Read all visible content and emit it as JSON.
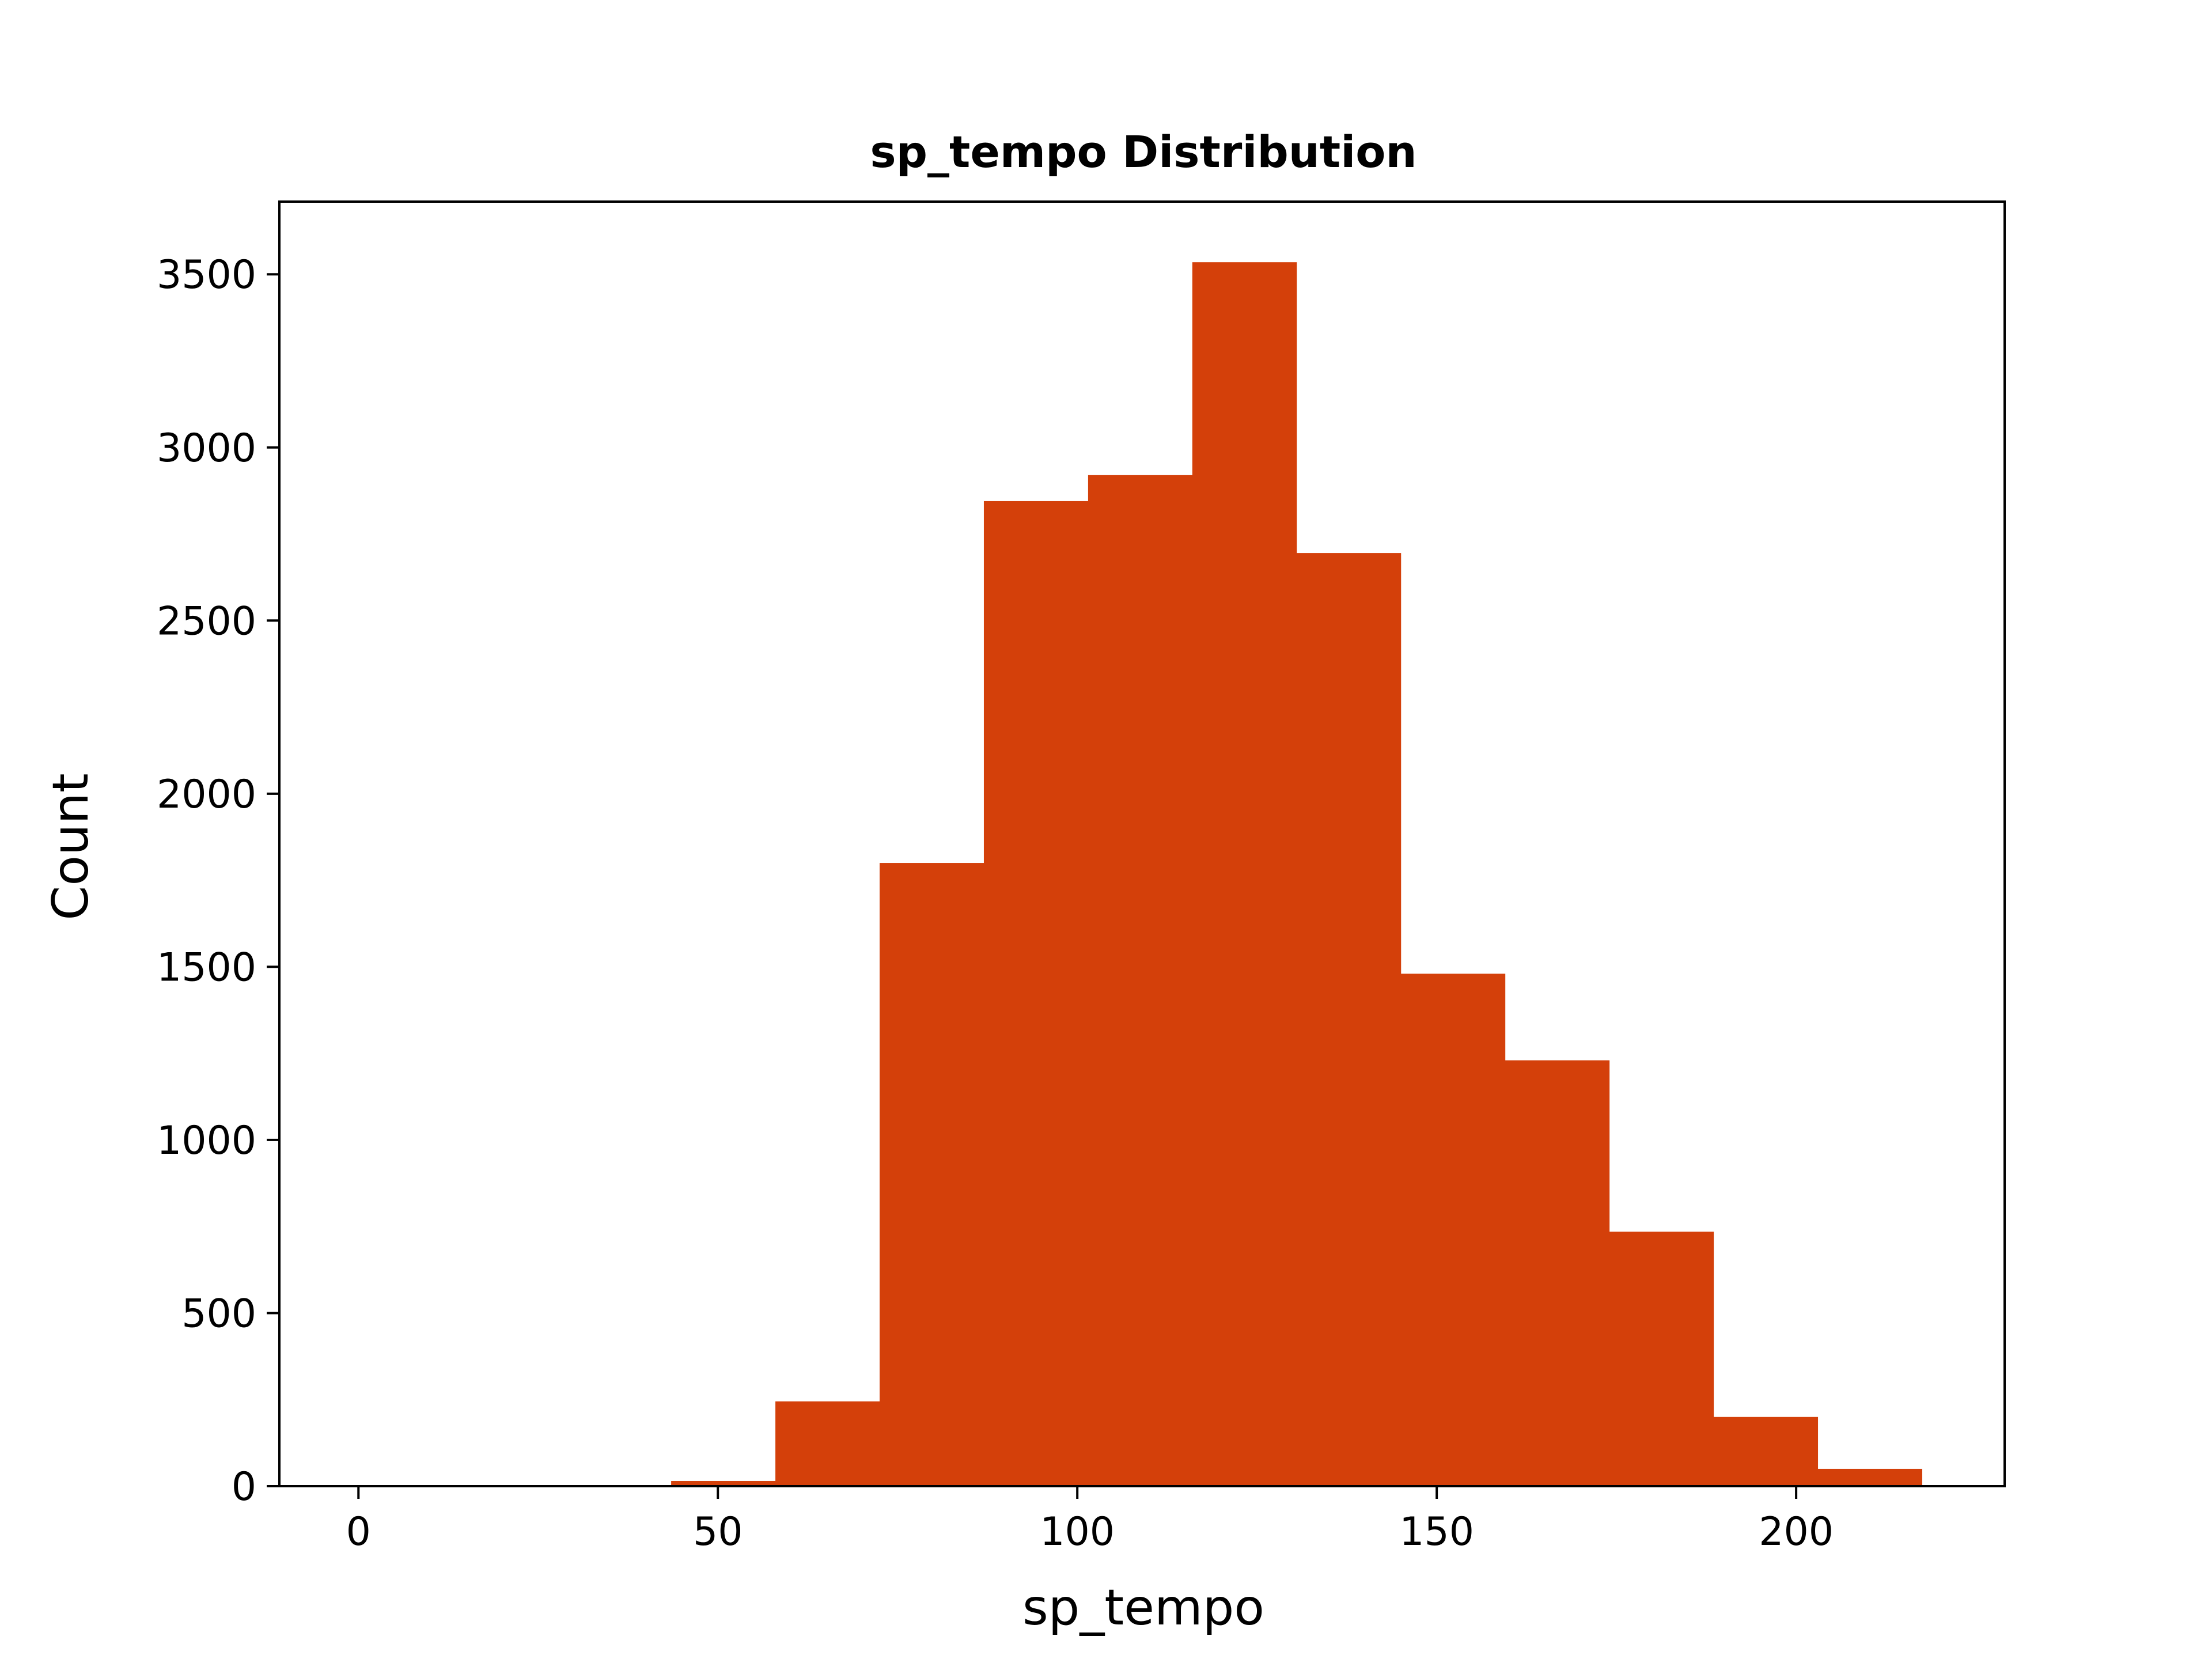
{
  "chart_data": {
    "type": "bar",
    "title": "sp_tempo Distribution",
    "xlabel": "sp_tempo",
    "ylabel": "Count",
    "xlim": [
      -11,
      229
    ],
    "ylim": [
      0,
      3710
    ],
    "xticks": [
      0,
      50,
      100,
      150,
      200
    ],
    "yticks": [
      0,
      500,
      1000,
      1500,
      2000,
      2500,
      3000,
      3500
    ],
    "bar_color": "#d4400a",
    "grid": false,
    "bins": [
      {
        "x0": 0,
        "x1": 14.5,
        "count": 0
      },
      {
        "x0": 14.5,
        "x1": 29,
        "count": 0
      },
      {
        "x0": 29,
        "x1": 43.5,
        "count": 0
      },
      {
        "x0": 43.5,
        "x1": 58,
        "count": 15
      },
      {
        "x0": 58,
        "x1": 72.5,
        "count": 245
      },
      {
        "x0": 72.5,
        "x1": 87,
        "count": 1800
      },
      {
        "x0": 87,
        "x1": 101.5,
        "count": 2845
      },
      {
        "x0": 101.5,
        "x1": 116,
        "count": 2920
      },
      {
        "x0": 116,
        "x1": 130.5,
        "count": 3535
      },
      {
        "x0": 130.5,
        "x1": 145,
        "count": 2695
      },
      {
        "x0": 145,
        "x1": 159.5,
        "count": 1480
      },
      {
        "x0": 159.5,
        "x1": 174,
        "count": 1230
      },
      {
        "x0": 174,
        "x1": 188.5,
        "count": 735
      },
      {
        "x0": 188.5,
        "x1": 203,
        "count": 200
      },
      {
        "x0": 203,
        "x1": 217.5,
        "count": 50
      }
    ]
  }
}
